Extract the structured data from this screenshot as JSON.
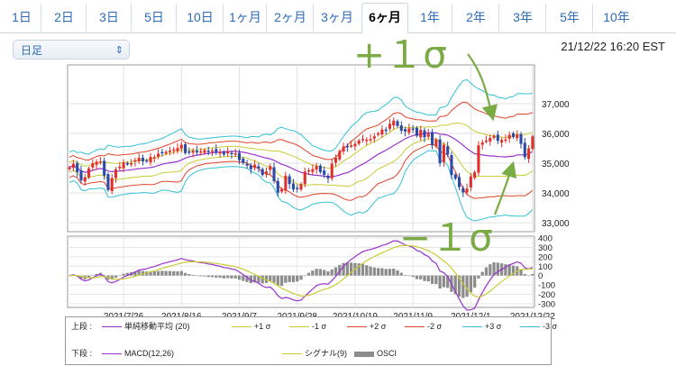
{
  "tabs": [
    {
      "label": "1日",
      "active": false
    },
    {
      "label": "2日",
      "active": false
    },
    {
      "label": "3日",
      "active": false
    },
    {
      "label": "5日",
      "active": false
    },
    {
      "label": "10日",
      "active": false
    },
    {
      "label": "1ヶ月",
      "active": false
    },
    {
      "label": "2ヶ月",
      "active": false
    },
    {
      "label": "3ヶ月",
      "active": false
    },
    {
      "label": "6ヶ月",
      "active": true
    },
    {
      "label": "1年",
      "active": false
    },
    {
      "label": "2年",
      "active": false
    },
    {
      "label": "3年",
      "active": false
    },
    {
      "label": "5年",
      "active": false
    },
    {
      "label": "10年",
      "active": false
    }
  ],
  "period_select": {
    "value": "日足"
  },
  "timestamp": "21/12/22 16:20 EST",
  "annotations": {
    "plus": "+１σ",
    "minus": "−１σ",
    "color": "#7aab45"
  },
  "legend": {
    "upper_label": "上段 :",
    "lower_label": "下段 :",
    "upper_items": [
      {
        "label": "単純移動平均 (20)",
        "color": "#9933cc"
      },
      {
        "label": "+1 σ",
        "color": "#c8cc33"
      },
      {
        "label": "-1 σ",
        "color": "#c8cc33"
      },
      {
        "label": "+2 σ",
        "color": "#e0442a"
      },
      {
        "label": "-2 σ",
        "color": "#e0442a"
      },
      {
        "label": "+3 σ",
        "color": "#33c0d6"
      },
      {
        "label": "-3 σ",
        "color": "#33c0d6"
      }
    ],
    "lower_items": [
      {
        "label": "MACD(12,26)",
        "color": "#9933cc"
      },
      {
        "label": "シグナル(9)",
        "color": "#c8cc33"
      },
      {
        "label": "OSCI",
        "color": "#8c8c8c"
      }
    ]
  },
  "chart_data": [
    {
      "type": "candlestick",
      "title": "",
      "y_axis": {
        "ticks": [
          "33,000",
          "34,000",
          "35,000",
          "36,000",
          "37,000"
        ],
        "tick_values": [
          33000,
          34000,
          35000,
          36000,
          37000
        ],
        "ylim": [
          32700,
          38300
        ],
        "side": "right"
      },
      "x_axis": {
        "tick_labels": [
          "2021/7/26",
          "2021/8/16",
          "2021/9/7",
          "2021/9/28",
          "2021/10/19",
          "2021/11/9",
          "2021/12/1",
          "2021/12/22"
        ]
      },
      "up_color": "#e0302a",
      "down_color": "#2b4aa8",
      "close_series": [
        34860,
        34980,
        34700,
        34420,
        34520,
        34820,
        35000,
        35050,
        35060,
        34580,
        34100,
        34500,
        34790,
        34880,
        35020,
        34970,
        35000,
        35100,
        35180,
        35060,
        35080,
        35210,
        35200,
        35320,
        35360,
        35380,
        35420,
        35460,
        35510,
        35620,
        35340,
        35390,
        35420,
        35360,
        35400,
        35440,
        35380,
        35420,
        35360,
        35380,
        35290,
        35400,
        35310,
        35330,
        35100,
        35010,
        34920,
        34800,
        34950,
        34820,
        34610,
        34720,
        34900,
        34400,
        34010,
        34130,
        34580,
        34300,
        34120,
        34150,
        34300,
        34720,
        34760,
        34800,
        34900,
        34700,
        34610,
        34490,
        34980,
        35180,
        35410,
        35560,
        35540,
        35600,
        35650,
        35760,
        35820,
        35790,
        35810,
        35900,
        36000,
        36130,
        36120,
        36320,
        36430,
        36250,
        36090,
        36060,
        36170,
        36150,
        35920,
        36120,
        35870,
        35990,
        35600,
        35800,
        35000,
        35620,
        35290,
        34600,
        34480,
        34200,
        34020,
        34150,
        34560,
        34700,
        35600,
        35700,
        35760,
        35850,
        35920,
        35750,
        35780,
        35800,
        35950,
        35880,
        35970,
        35650,
        35200,
        35500,
        35900
      ]
    },
    {
      "type": "line",
      "title": "",
      "y_axis": {
        "ticks": [
          "400",
          "300",
          "200",
          "100",
          "0",
          "-100",
          "-200",
          "-300"
        ],
        "tick_values": [
          400,
          300,
          200,
          100,
          0,
          -100,
          -200,
          -300
        ],
        "ylim": [
          -340,
          420
        ],
        "side": "right"
      },
      "series_names": [
        "MACD(12,26)",
        "シグナル(9)",
        "OSCI"
      ]
    }
  ]
}
